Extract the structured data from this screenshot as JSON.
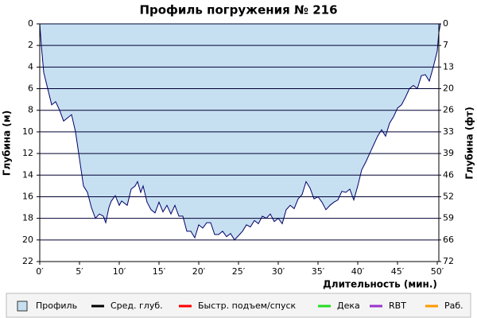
{
  "chart_data": {
    "type": "area",
    "title": "Профиль погружения № 216",
    "x_label": "Длительность (мин.)",
    "y_label": "Глубина (м)",
    "y2_label": "Глубина (фт)",
    "x": [
      0,
      0.2,
      0.5,
      1,
      1.5,
      2,
      2.5,
      3,
      3.5,
      4,
      4.5,
      5,
      5.5,
      6,
      6.5,
      7,
      7.5,
      8,
      8.3,
      8.7,
      9,
      9.5,
      10,
      10.3,
      11,
      11.5,
      12,
      12.3,
      12.7,
      13,
      13.5,
      14,
      14.5,
      15,
      15.5,
      16,
      16.5,
      17,
      17.5,
      18,
      18.5,
      19,
      19.5,
      20,
      20.5,
      21,
      21.5,
      22,
      22.5,
      23,
      23.5,
      24,
      24.5,
      25,
      25.5,
      26,
      26.5,
      27,
      27.5,
      28,
      28.5,
      29,
      29.5,
      30,
      30.5,
      31,
      31.5,
      32,
      32.5,
      33,
      33.5,
      34,
      34.5,
      35,
      35.5,
      36,
      36.5,
      37,
      37.5,
      38,
      38.5,
      39,
      39.5,
      40,
      40.5,
      41,
      41.5,
      42,
      42.5,
      43,
      43.5,
      44,
      44.5,
      45,
      45.5,
      46,
      46.5,
      47,
      47.5,
      48,
      48.5,
      49,
      49.5,
      50,
      50.2,
      50.4
    ],
    "series": [
      {
        "name": "Профиль",
        "color": "#c6e0f2",
        "line_color": "#000066",
        "values": [
          0,
          2,
          4.5,
          6,
          7.5,
          7.2,
          8,
          9,
          8.7,
          8.4,
          10,
          12.5,
          15,
          15.6,
          17,
          18,
          17.6,
          17.8,
          18.4,
          17,
          16.4,
          15.9,
          16.8,
          16.4,
          16.8,
          15.3,
          15,
          14.6,
          15.6,
          15,
          16.5,
          17.2,
          17.5,
          16.5,
          17.4,
          16.8,
          17.6,
          16.8,
          17.8,
          17.8,
          19.2,
          19.2,
          19.8,
          18.6,
          18.9,
          18.4,
          18.4,
          19.5,
          19.5,
          19.2,
          19.7,
          19.4,
          20,
          19.6,
          19.2,
          18.6,
          18.8,
          18.2,
          18.5,
          17.8,
          18,
          17.6,
          18.3,
          18,
          18.5,
          17.2,
          16.8,
          17.1,
          16.2,
          15.8,
          14.6,
          15.2,
          16.2,
          16,
          16.5,
          17.2,
          16.8,
          16.5,
          16.3,
          15.5,
          15.6,
          15.3,
          16.3,
          15,
          13.5,
          12.8,
          12,
          11.2,
          10.4,
          9.8,
          10.4,
          9.2,
          8.6,
          7.8,
          7.5,
          6.8,
          6,
          5.7,
          6,
          4.8,
          4.7,
          5.3,
          4,
          2.5,
          0.8,
          0
        ]
      }
    ],
    "legend_extra": [
      {
        "name": "Сред. глуб.",
        "color": "#000000"
      },
      {
        "name": "Быстр. подъем/спуск",
        "color": "#ff0000"
      },
      {
        "name": "Дека",
        "color": "#22dd22"
      },
      {
        "name": "RBT",
        "color": "#9933cc"
      },
      {
        "name": "Раб.",
        "color": "#ff9900"
      }
    ],
    "xlim": [
      0,
      50.2
    ],
    "xticks": [
      {
        "value": 0,
        "label": "0′"
      },
      {
        "value": 5,
        "label": "5′"
      },
      {
        "value": 10,
        "label": "10′"
      },
      {
        "value": 15,
        "label": "15′"
      },
      {
        "value": 20,
        "label": "20′"
      },
      {
        "value": 25,
        "label": "25′"
      },
      {
        "value": 30,
        "label": "30′"
      },
      {
        "value": 35,
        "label": "35′"
      },
      {
        "value": 40,
        "label": "40′"
      },
      {
        "value": 45,
        "label": "45′"
      },
      {
        "value": 50,
        "label": "50′"
      }
    ],
    "ylim": [
      0,
      22
    ],
    "y_inverted": true,
    "yticks": [
      0,
      2,
      4,
      6,
      8,
      10,
      12,
      14,
      16,
      18,
      20,
      22
    ],
    "y2lim": [
      0,
      72.18
    ],
    "y2ticks": [
      {
        "value": 0,
        "label": "0"
      },
      {
        "value": 6.56,
        "label": "7"
      },
      {
        "value": 13.12,
        "label": "13"
      },
      {
        "value": 19.69,
        "label": "20"
      },
      {
        "value": 26.25,
        "label": "26"
      },
      {
        "value": 32.81,
        "label": "33"
      },
      {
        "value": 39.37,
        "label": "39"
      },
      {
        "value": 45.93,
        "label": "46"
      },
      {
        "value": 52.49,
        "label": "52"
      },
      {
        "value": 59.06,
        "label": "59"
      },
      {
        "value": 65.62,
        "label": "66"
      },
      {
        "value": 72.18,
        "label": "72"
      }
    ],
    "grid": true,
    "grid_color": "#000033"
  }
}
